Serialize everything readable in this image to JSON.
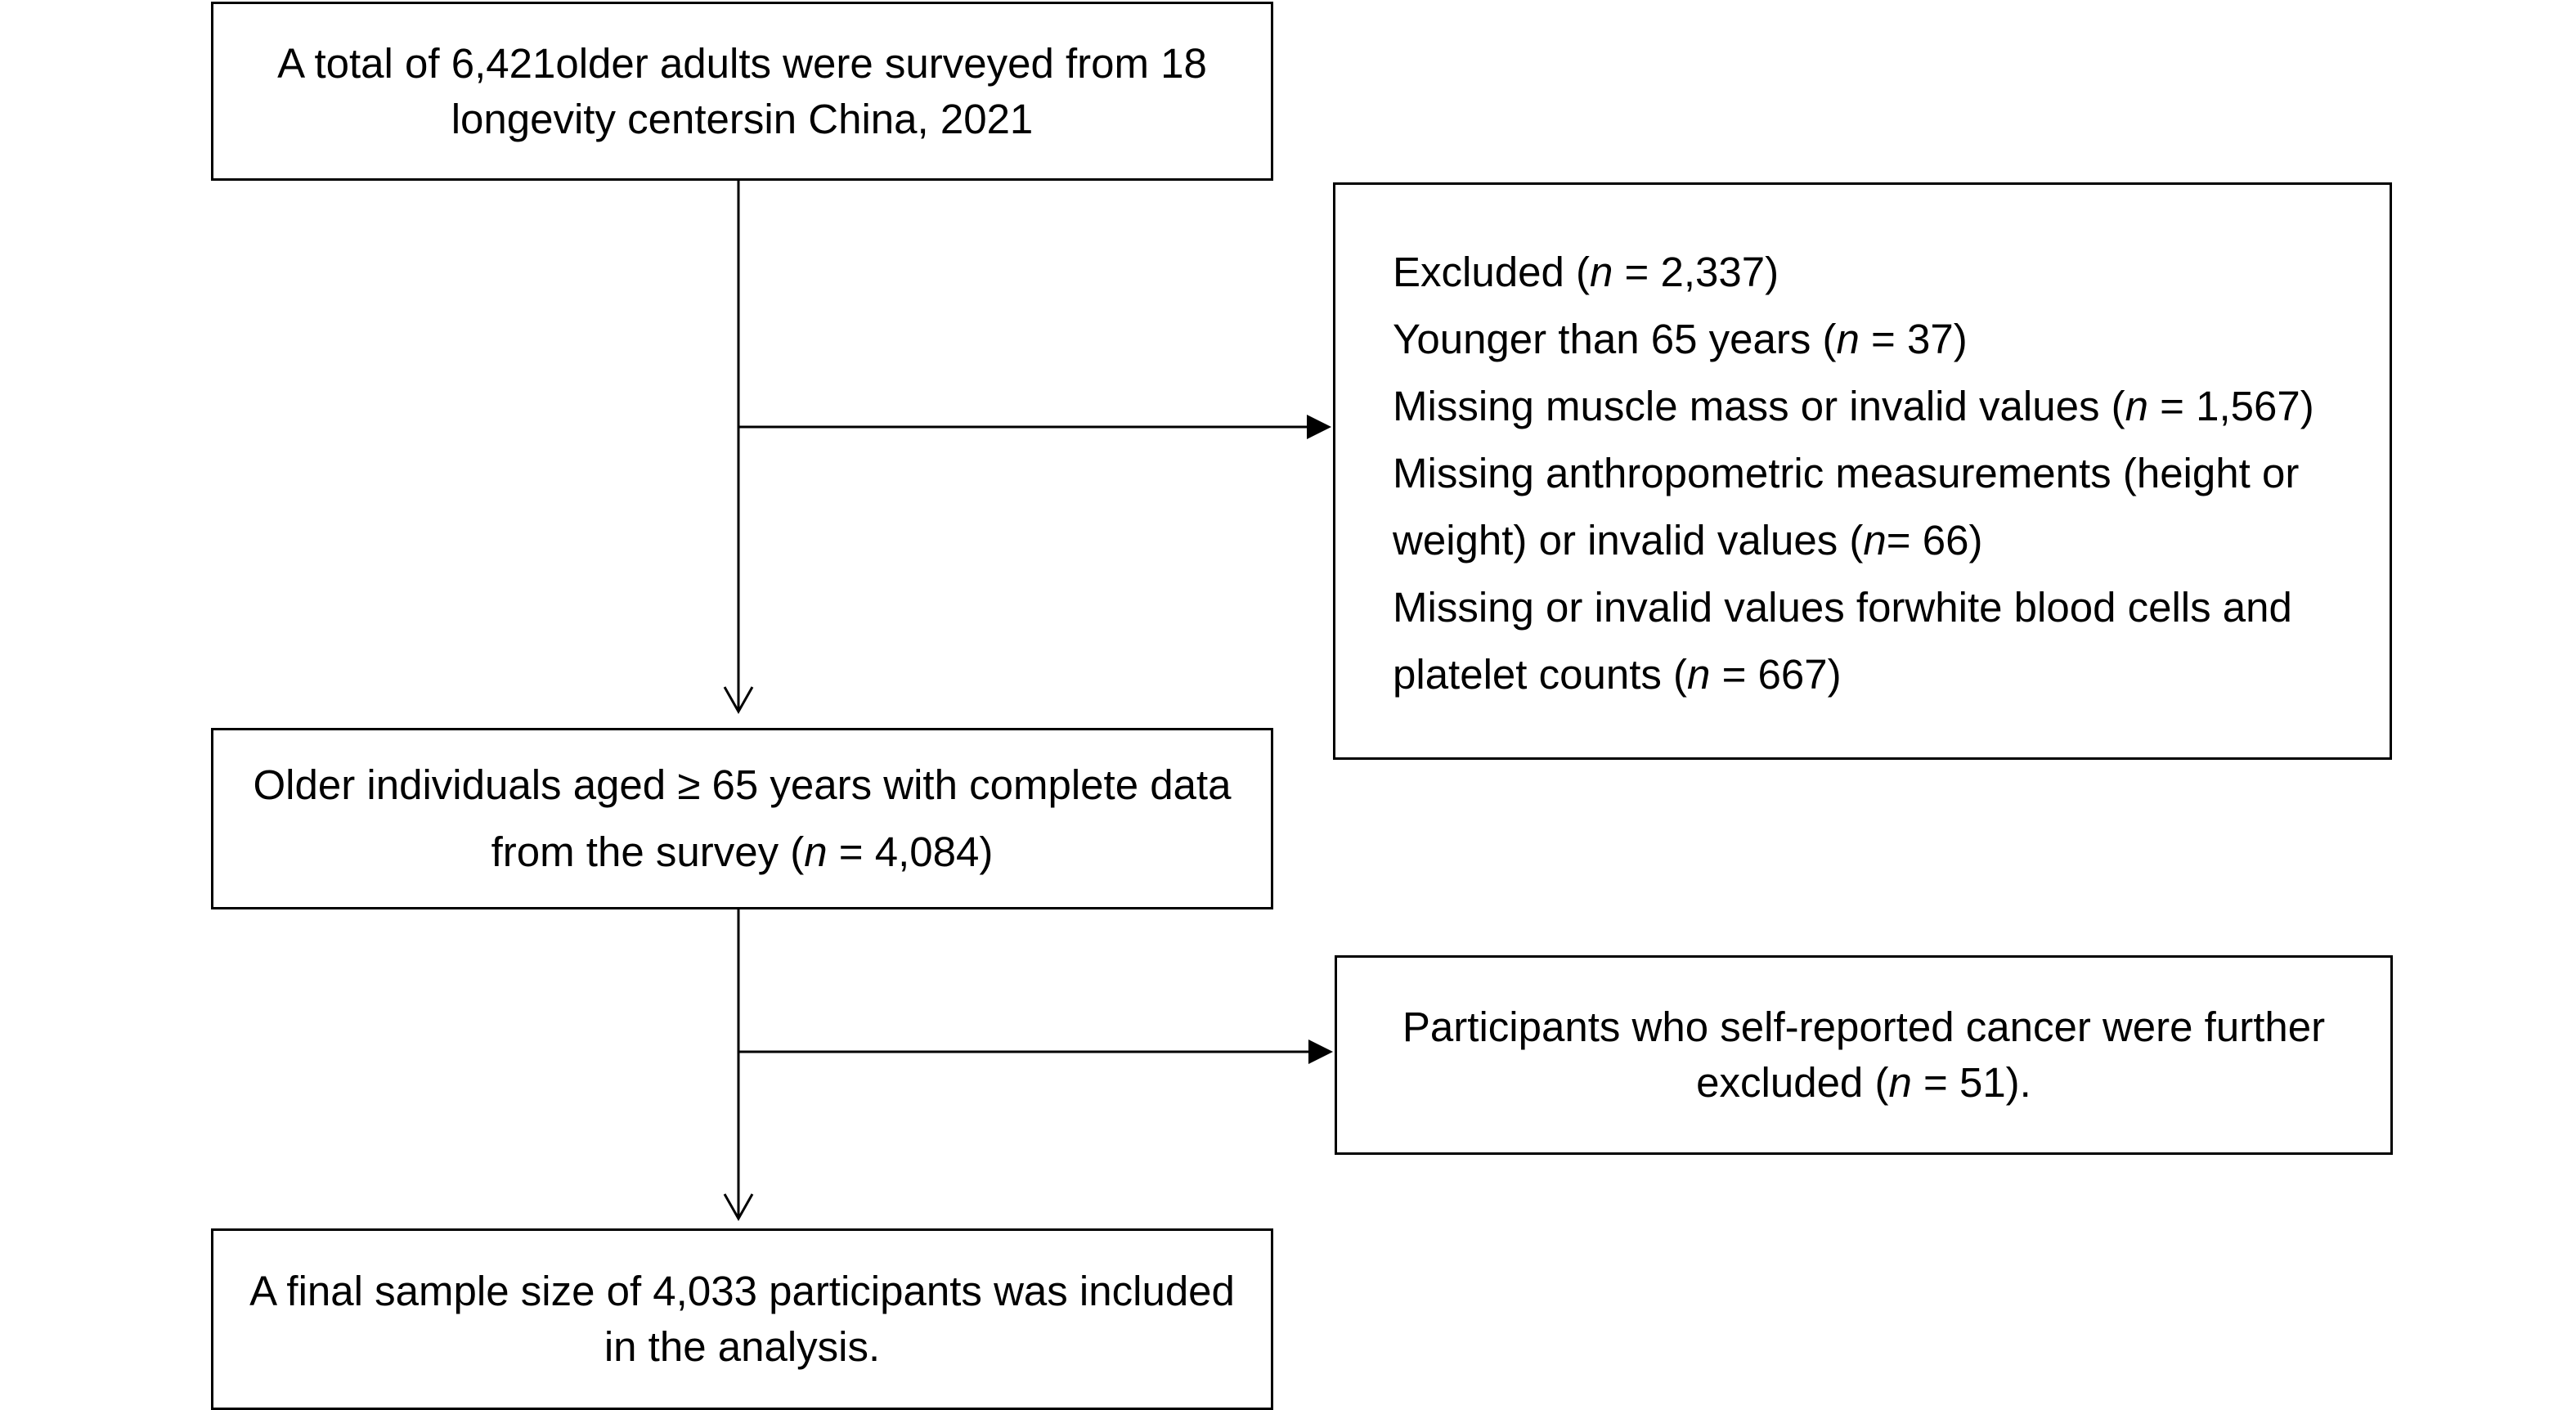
{
  "boxes": {
    "start": {
      "line1": "A total of 6,421older adults were surveyed from 18",
      "line2": "longevity centersin China, 2021"
    },
    "excluded": {
      "title_prefix": "Excluded (",
      "title_n": "n",
      "title_suffix": " = 2,337)",
      "items": [
        {
          "prefix": "Younger than 65 years (",
          "n": "n",
          "suffix": " = 37)"
        },
        {
          "prefix": "Missing muscle mass or invalid values (",
          "n": "n",
          "suffix": " = 1,567)"
        },
        {
          "text": "Missing anthropometric measurements (height or"
        },
        {
          "prefix": "weight) or invalid values (",
          "n": "n",
          "suffix": "= 66)"
        },
        {
          "text": "Missing or invalid values forwhite blood cells and"
        },
        {
          "prefix": "platelet counts (",
          "n": "n",
          "suffix": " = 667)"
        }
      ]
    },
    "complete": {
      "line1": "Older individuals aged ≥ 65 years with complete data",
      "line2_prefix": "from the survey (",
      "line2_n": "n",
      "line2_suffix": " = 4,084)"
    },
    "cancer": {
      "line1": "Participants who self-reported cancer were further",
      "line2_prefix": "excluded (",
      "line2_n": "n",
      "line2_suffix": " = 51)."
    },
    "final": {
      "line1": "A final sample size of 4,033 participants was included",
      "line2": "in the analysis."
    }
  },
  "colors": {
    "stroke": "#000000",
    "background": "#ffffff"
  }
}
